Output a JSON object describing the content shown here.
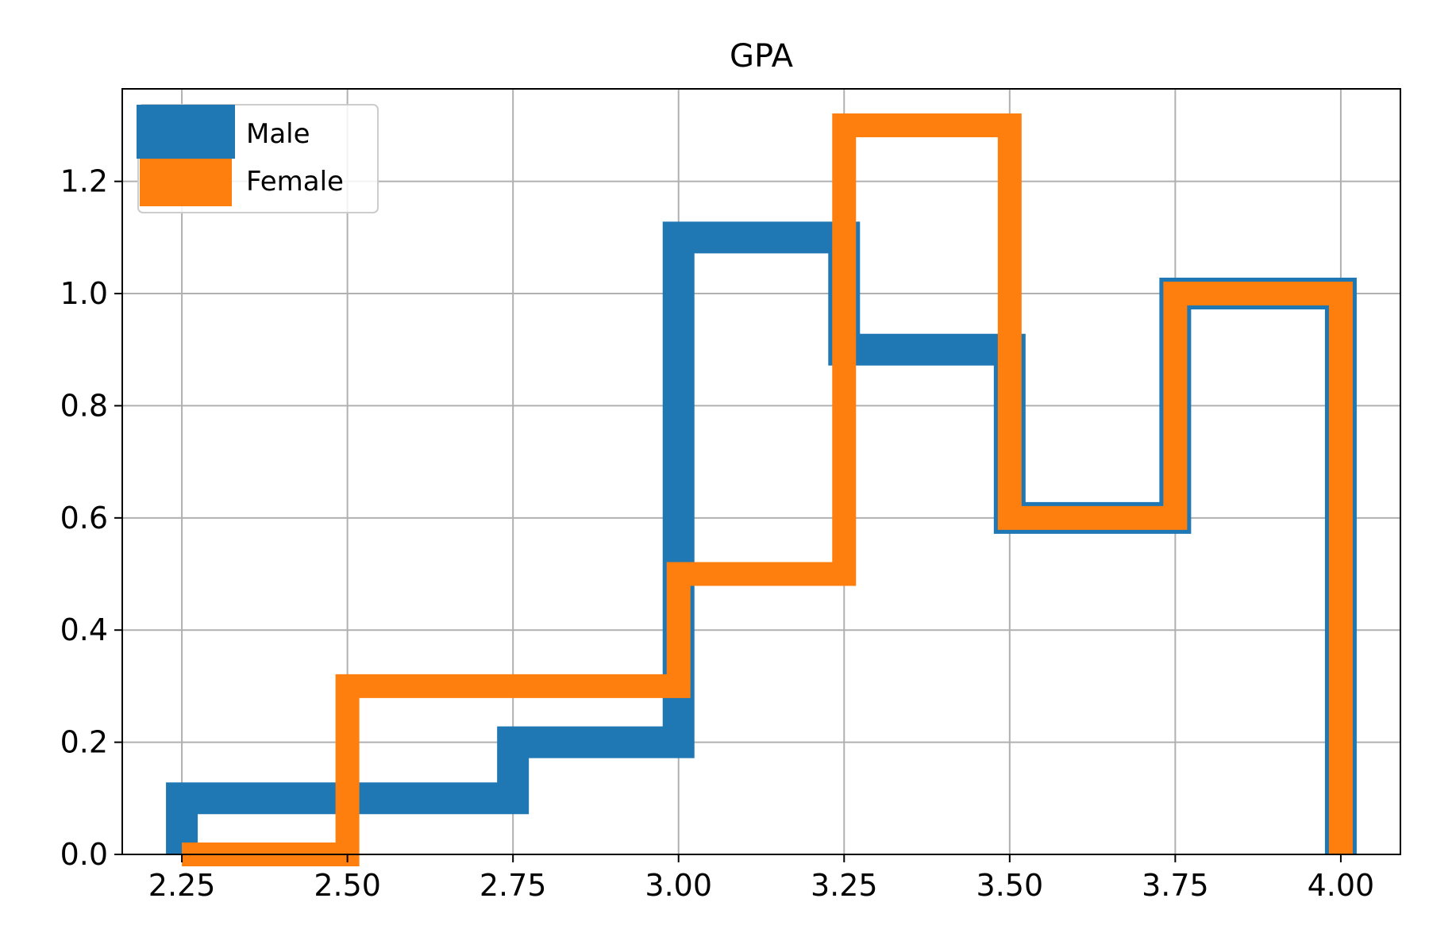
{
  "chart_data": {
    "type": "step-histogram",
    "title": "GPA",
    "xlabel": "",
    "ylabel": "",
    "xlim": [
      2.16,
      4.09
    ],
    "ylim": [
      0.0,
      1.365
    ],
    "grid": true,
    "legend_position": "top-left",
    "bin_edges": [
      2.25,
      2.5,
      2.75,
      3.0,
      3.25,
      3.5,
      3.75,
      4.0
    ],
    "x_ticks": [
      "2.25",
      "2.50",
      "2.75",
      "3.00",
      "3.25",
      "3.50",
      "3.75",
      "4.00"
    ],
    "y_ticks": [
      "0.0",
      "0.2",
      "0.4",
      "0.6",
      "0.8",
      "1.0",
      "1.2"
    ],
    "series": [
      {
        "name": "Male",
        "color": "#1f77b4",
        "values": [
          0.1,
          0.1,
          0.2,
          1.1,
          0.9,
          0.6,
          1.0
        ]
      },
      {
        "name": "Female",
        "color": "#ff7f0e",
        "values": [
          0.0,
          0.3,
          0.3,
          0.5,
          1.3,
          0.6,
          1.0
        ]
      }
    ]
  }
}
